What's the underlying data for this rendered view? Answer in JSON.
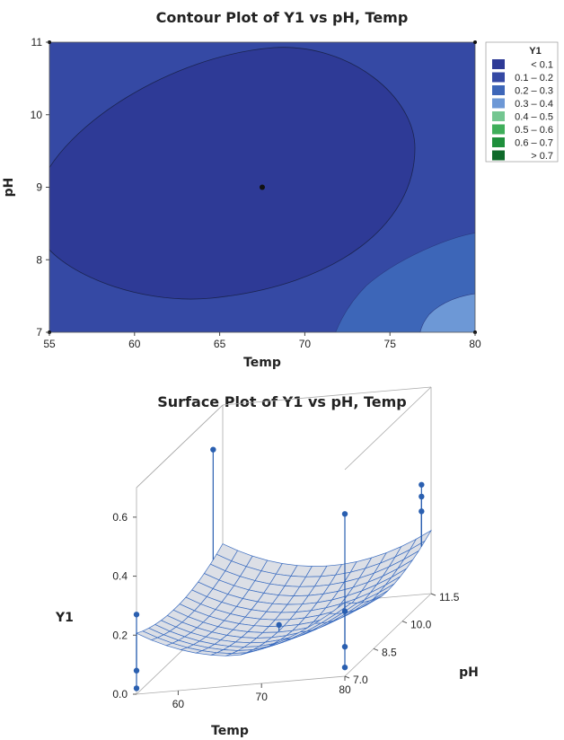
{
  "chart_data": [
    {
      "type": "contour",
      "title": "Contour Plot of Y1 vs pH, Temp",
      "xlabel": "Temp",
      "ylabel": "pH",
      "xlim": [
        55,
        80
      ],
      "ylim": [
        7,
        11
      ],
      "xticks": [
        "55",
        "60",
        "65",
        "70",
        "75",
        "80"
      ],
      "yticks": [
        "7",
        "8",
        "9",
        "10",
        "11"
      ],
      "center_point": {
        "x": 67.5,
        "y": 9
      },
      "legend": {
        "title": "Y1",
        "position": "right",
        "levels": [
          {
            "label": "<  0.1",
            "color": "#2e3a96"
          },
          {
            "label": "0.1 –  0.2",
            "color": "#3549a4"
          },
          {
            "label": "0.2 –  0.3",
            "color": "#3d66b8"
          },
          {
            "label": "0.3 –  0.4",
            "color": "#6d98d6"
          },
          {
            "label": "0.4 –  0.5",
            "color": "#74c691"
          },
          {
            "label": "0.5 –  0.6",
            "color": "#3fae5a"
          },
          {
            "label": "0.6 –  0.7",
            "color": "#1e8f3c"
          },
          {
            "label": ">  0.7",
            "color": "#0f6a2a"
          }
        ]
      }
    },
    {
      "type": "surface",
      "title": "Surface Plot of Y1 vs pH, Temp",
      "xlabel": "Temp",
      "ylabel": "pH",
      "zlabel": "Y1",
      "xticks": [
        "60",
        "70",
        "80"
      ],
      "yticks": [
        "7.0",
        "8.5",
        "10.0",
        "11.5"
      ],
      "zticks": [
        "0.0",
        "0.2",
        "0.4",
        "0.6"
      ],
      "points": [
        {
          "temp": 55,
          "ph": 7,
          "y1": 0.27
        },
        {
          "temp": 55,
          "ph": 7,
          "y1": 0.08
        },
        {
          "temp": 55,
          "ph": 7,
          "y1": 0.02
        },
        {
          "temp": 55,
          "ph": 11,
          "y1": 0.58
        },
        {
          "temp": 67.5,
          "ph": 9,
          "y1": 0.08
        },
        {
          "temp": 80,
          "ph": 7,
          "y1": 0.55
        },
        {
          "temp": 80,
          "ph": 7,
          "y1": 0.22
        },
        {
          "temp": 80,
          "ph": 7,
          "y1": 0.1
        },
        {
          "temp": 80,
          "ph": 7,
          "y1": 0.03
        },
        {
          "temp": 80,
          "ph": 11,
          "y1": 0.4
        },
        {
          "temp": 80,
          "ph": 11,
          "y1": 0.36
        },
        {
          "temp": 80,
          "ph": 11,
          "y1": 0.31
        }
      ]
    }
  ]
}
